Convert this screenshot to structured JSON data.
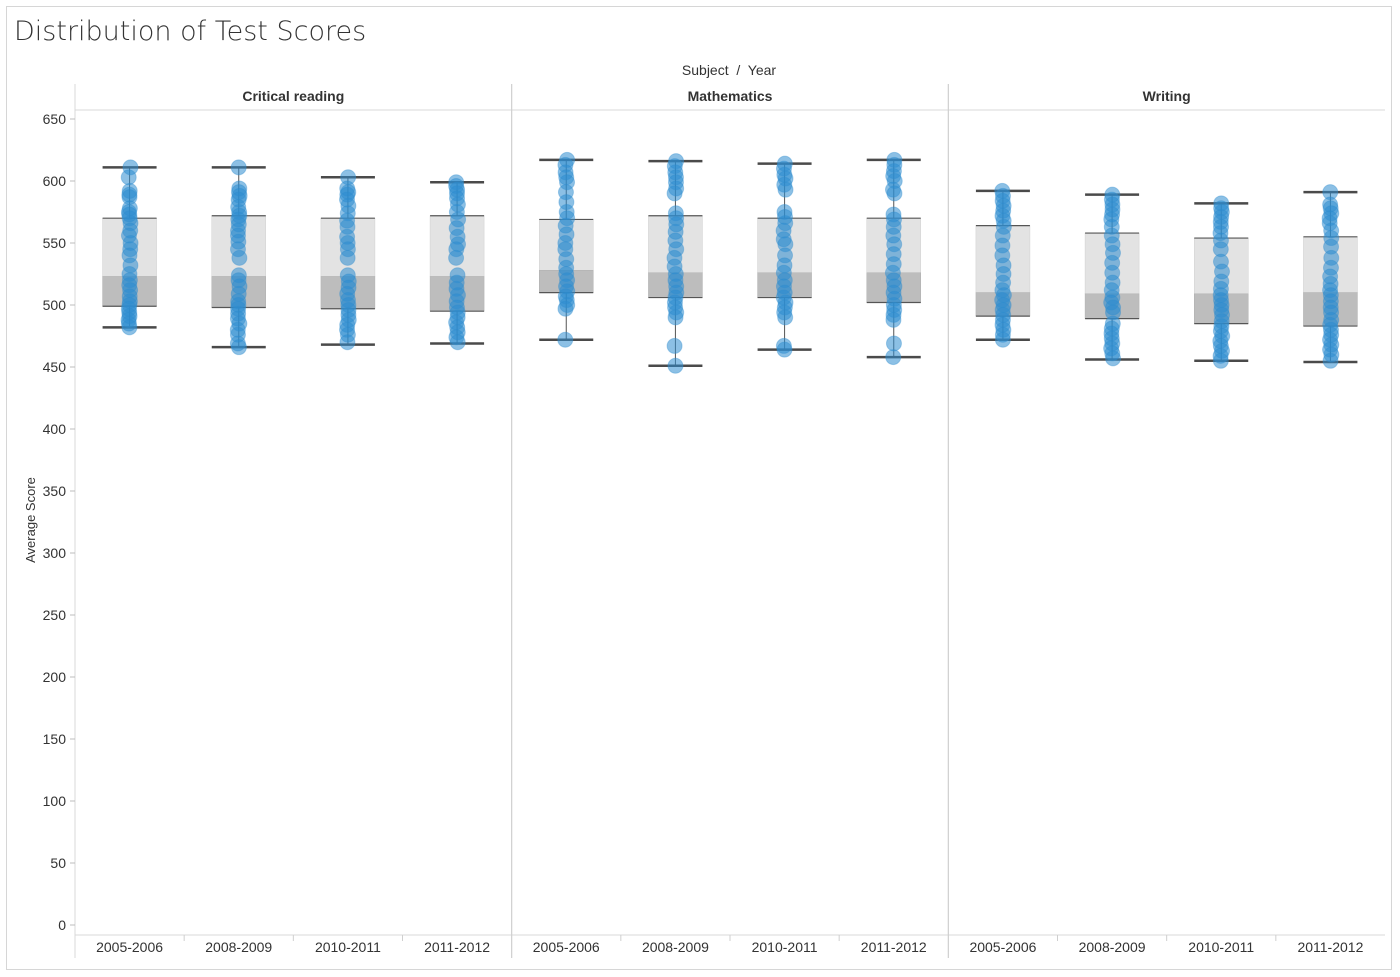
{
  "title": "Distribution of Test Scores",
  "chart_data": {
    "type": "box-plot with jittered dot strip",
    "column_header": "Subject  /  Year",
    "ylabel": "Average Score",
    "ylim": [
      0,
      650
    ],
    "yticks": [
      0,
      50,
      100,
      150,
      200,
      250,
      300,
      350,
      400,
      450,
      500,
      550,
      600,
      650
    ],
    "colors": {
      "dots": "#2e8ccf",
      "whisker": "#4a4a4a",
      "box_upper": "#e3e3e3",
      "box_lower": "#bdbdbd",
      "grid_line": "#d9d9d9"
    },
    "panels": [
      {
        "subject": "Critical reading",
        "years": [
          {
            "year": "2005-2006",
            "whisker_low": 482,
            "q1": 499,
            "median": 523,
            "q3": 570,
            "whisker_high": 611,
            "points": [
              611,
              603,
              592,
              589,
              587,
              578,
              575,
              573,
              570,
              566,
              560,
              556,
              550,
              545,
              540,
              532,
              525,
              520,
              516,
              512,
              507,
              503,
              500,
              497,
              494,
              491,
              488,
              485,
              482
            ]
          },
          {
            "year": "2008-2009",
            "whisker_low": 466,
            "q1": 498,
            "median": 523,
            "q3": 572,
            "whisker_high": 611,
            "points": [
              611,
              594,
              591,
              588,
              585,
              579,
              575,
              572,
              569,
              565,
              560,
              556,
              551,
              545,
              538,
              524,
              520,
              515,
              509,
              503,
              500,
              497,
              493,
              489,
              485,
              480,
              476,
              469,
              466
            ]
          },
          {
            "year": "2010-2011",
            "whisker_low": 468,
            "q1": 497,
            "median": 523,
            "q3": 570,
            "whisker_high": 603,
            "points": [
              603,
              594,
              591,
              589,
              585,
              580,
              574,
              568,
              563,
              555,
              550,
              545,
              538,
              524,
              519,
              514,
              509,
              504,
              500,
              496,
              492,
              488,
              484,
              480,
              476,
              470
            ]
          },
          {
            "year": "2011-2012",
            "whisker_low": 469,
            "q1": 495,
            "median": 523,
            "q3": 572,
            "whisker_high": 599,
            "points": [
              599,
              596,
              593,
              590,
              586,
              581,
              575,
              569,
              562,
              555,
              549,
              545,
              538,
              524,
              518,
              513,
              508,
              503,
              498,
              494,
              490,
              486,
              482,
              478,
              474,
              470
            ]
          }
        ]
      },
      {
        "subject": "Mathematics",
        "years": [
          {
            "year": "2005-2006",
            "whisker_low": 472,
            "q1": 510,
            "median": 528,
            "q3": 569,
            "whisker_high": 617,
            "points": [
              617,
              613,
              607,
              603,
              599,
              591,
              583,
              575,
              570,
              564,
              557,
              550,
              545,
              537,
              530,
              525,
              520,
              515,
              511,
              507,
              504,
              500,
              497,
              472
            ]
          },
          {
            "year": "2008-2009",
            "whisker_low": 451,
            "q1": 506,
            "median": 526,
            "q3": 572,
            "whisker_high": 616,
            "points": [
              616,
              612,
              607,
              603,
              599,
              594,
              590,
              574,
              570,
              565,
              559,
              552,
              545,
              538,
              531,
              525,
              520,
              515,
              510,
              506,
              502,
              498,
              494,
              490,
              467,
              451
            ]
          },
          {
            "year": "2010-2011",
            "whisker_low": 464,
            "q1": 506,
            "median": 526,
            "q3": 570,
            "whisker_high": 614,
            "points": [
              614,
              610,
              605,
              602,
              597,
              593,
              575,
              571,
              566,
              560,
              553,
              549,
              540,
              532,
              526,
              520,
              515,
              510,
              506,
              502,
              498,
              494,
              490,
              467,
              464
            ]
          },
          {
            "year": "2011-2012",
            "whisker_low": 458,
            "q1": 502,
            "median": 526,
            "q3": 570,
            "whisker_high": 617,
            "points": [
              617,
              613,
              608,
              604,
              600,
              593,
              590,
              573,
              569,
              563,
              556,
              549,
              541,
              533,
              526,
              520,
              515,
              510,
              505,
              500,
              496,
              492,
              488,
              469,
              458
            ]
          }
        ]
      },
      {
        "subject": "Writing",
        "years": [
          {
            "year": "2005-2006",
            "whisker_low": 472,
            "q1": 491,
            "median": 510,
            "q3": 564,
            "whisker_high": 592,
            "points": [
              592,
              588,
              584,
              580,
              576,
              572,
              568,
              563,
              556,
              548,
              540,
              532,
              525,
              518,
              512,
              508,
              504,
              500,
              496,
              492,
              488,
              484,
              480,
              476,
              472
            ]
          },
          {
            "year": "2008-2009",
            "whisker_low": 456,
            "q1": 489,
            "median": 509,
            "q3": 558,
            "whisker_high": 589,
            "points": [
              589,
              585,
              581,
              577,
              573,
              569,
              563,
              556,
              549,
              542,
              534,
              526,
              518,
              512,
              506,
              502,
              498,
              494,
              485,
              481,
              477,
              473,
              469,
              465,
              461,
              457
            ]
          },
          {
            "year": "2010-2011",
            "whisker_low": 455,
            "q1": 485,
            "median": 509,
            "q3": 554,
            "whisker_high": 582,
            "points": [
              582,
              578,
              575,
              571,
              567,
              563,
              558,
              552,
              545,
              535,
              527,
              519,
              513,
              508,
              504,
              500,
              496,
              492,
              487,
              483,
              479,
              475,
              471,
              467,
              463,
              459,
              455
            ]
          },
          {
            "year": "2011-2012",
            "whisker_low": 454,
            "q1": 483,
            "median": 510,
            "q3": 555,
            "whisker_high": 591,
            "points": [
              591,
              581,
              578,
              574,
              570,
              566,
              560,
              554,
              547,
              538,
              530,
              523,
              517,
              512,
              508,
              503,
              498,
              494,
              488,
              484,
              480,
              476,
              472,
              468,
              464,
              460,
              455
            ]
          }
        ]
      }
    ]
  }
}
